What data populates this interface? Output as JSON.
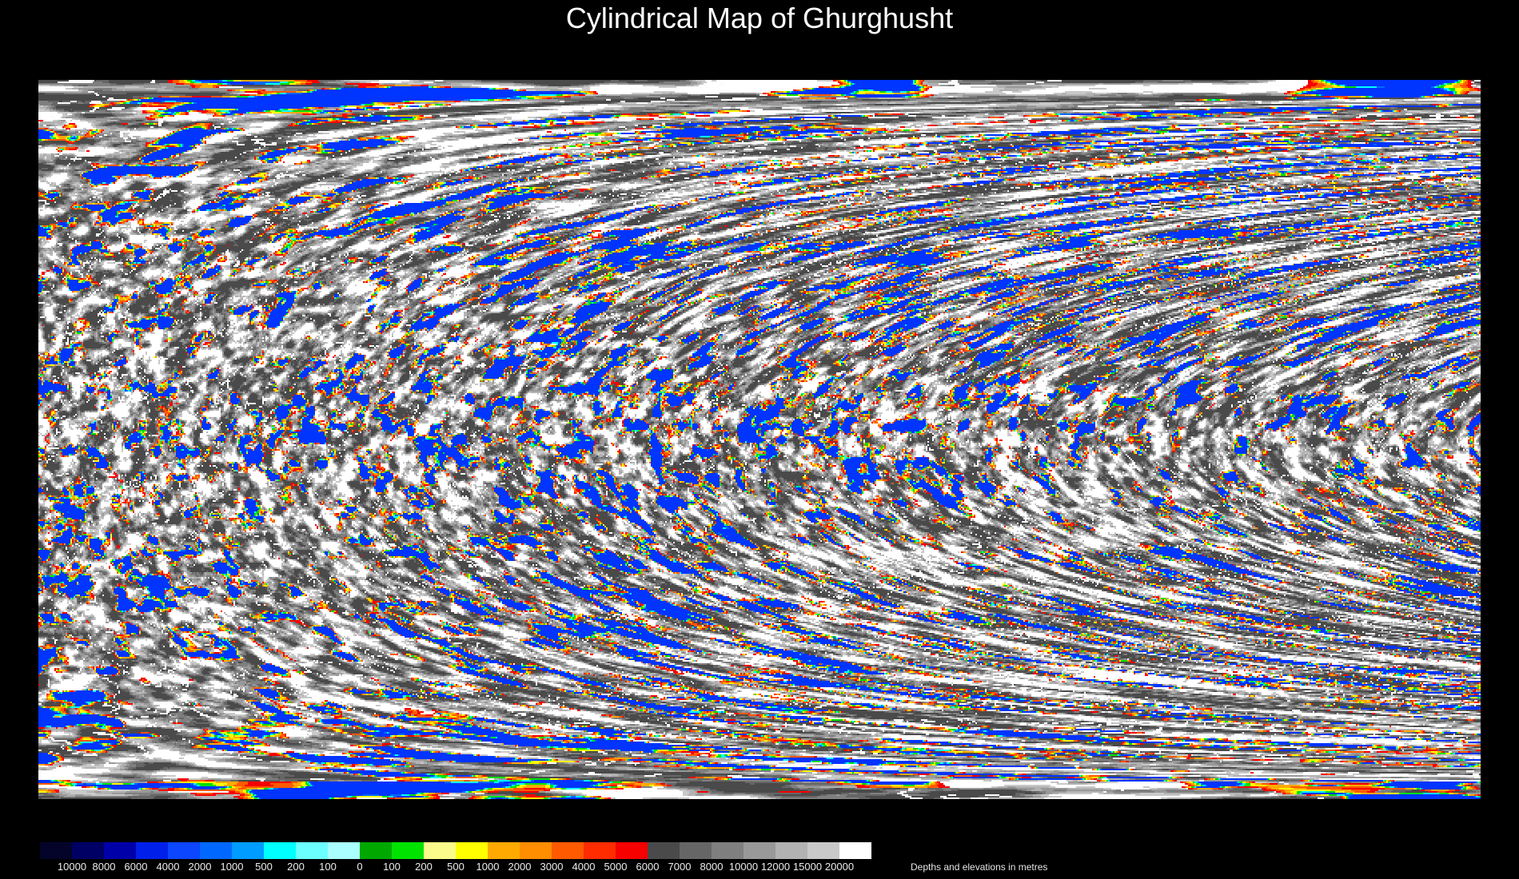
{
  "title": "Cylindrical Map of Ghurghusht",
  "map": {
    "spot_colors": [
      "#f60000",
      "#ff5a00",
      "#ffaa00",
      "#ffff00",
      "#00e200",
      "#00ffff",
      "#0068ff",
      "#0034ff"
    ]
  },
  "legend": {
    "caption": "Depths and elevations in metres",
    "tick_labels": [
      "10000",
      "8000",
      "6000",
      "4000",
      "2000",
      "1000",
      "500",
      "200",
      "100",
      "0",
      "100",
      "200",
      "500",
      "1000",
      "2000",
      "3000",
      "4000",
      "5000",
      "6000",
      "7000",
      "8000",
      "10000",
      "12000",
      "15000",
      "20000"
    ],
    "segment_colors": [
      "#04042a",
      "#000064",
      "#0000a8",
      "#0020ea",
      "#0c46ff",
      "#0068ff",
      "#009cff",
      "#00ffff",
      "#6cffff",
      "#aaffff",
      "#00a800",
      "#00e200",
      "#fbfb8b",
      "#ffff00",
      "#ffaa00",
      "#ff8e00",
      "#ff5a00",
      "#ff2c00",
      "#f60000",
      "#4a4a4a",
      "#666666",
      "#7f7f7f",
      "#999999",
      "#b2b2b2",
      "#c9c9c9",
      "#ffffff"
    ]
  }
}
